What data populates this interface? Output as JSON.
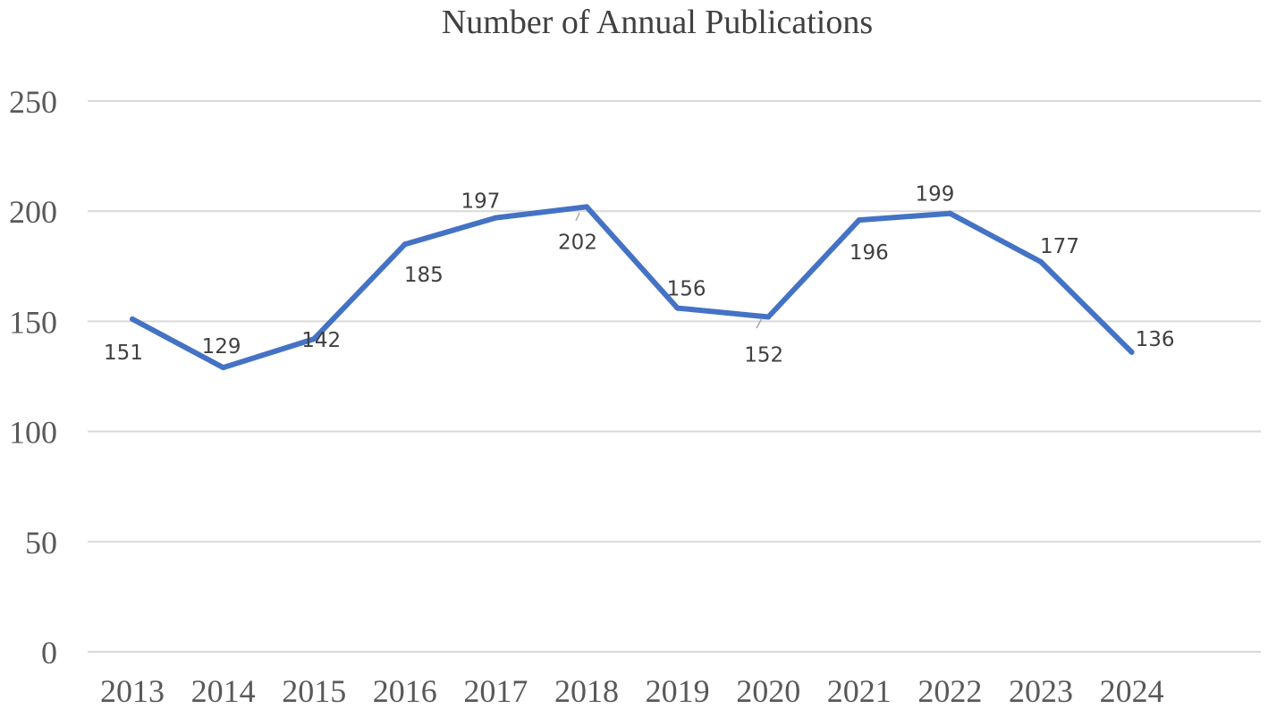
{
  "chart_data": {
    "type": "line",
    "title": "Number of Annual Publications",
    "xlabel": "",
    "ylabel": "",
    "categories": [
      "2013",
      "2014",
      "2015",
      "2016",
      "2017",
      "2018",
      "2019",
      "2020",
      "2021",
      "2022",
      "2023",
      "2024"
    ],
    "series": [
      {
        "values": [
          151,
          129,
          142,
          185,
          197,
          202,
          156,
          152,
          196,
          199,
          177,
          136
        ],
        "color": "#4472c4"
      }
    ],
    "ylim": [
      0,
      250
    ],
    "yticks": [
      0,
      50,
      100,
      150,
      200,
      250
    ],
    "grid": true,
    "legend": "none",
    "data_labels": true
  }
}
